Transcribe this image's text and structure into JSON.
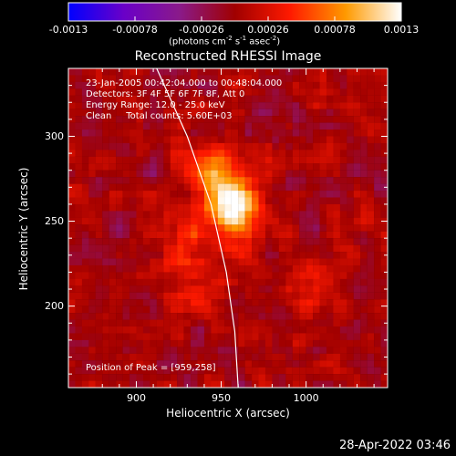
{
  "colorbar": {
    "ticks": [
      "-0.0013",
      "-0.00078",
      "-0.00026",
      "0.00026",
      "0.00078",
      "0.0013"
    ],
    "tick_values": [
      -0.0013,
      -0.00078,
      -0.00026,
      0.00026,
      0.00078,
      0.0013
    ],
    "range": [
      -0.0013,
      0.0013
    ],
    "unit_parts": [
      "(photons cm",
      "-2",
      " s",
      "-1",
      " asec",
      "-2",
      ")"
    ],
    "palette": [
      "#0000ff",
      "#6a00c8",
      "#8a1a8a",
      "#a00000",
      "#ff1a00",
      "#ff9a00",
      "#ffffff"
    ]
  },
  "chart_data": {
    "type": "heatmap",
    "title": "Reconstructed RHESSI Image",
    "xlabel": "Heliocentric X (arcsec)",
    "ylabel": "Heliocentric Y (arcsec)",
    "xlim": [
      860,
      1048
    ],
    "ylim": [
      152,
      340
    ],
    "xticks": [
      900,
      950,
      1000
    ],
    "yticks": [
      200,
      250,
      300
    ],
    "annotations": [
      "23-Jan-2005 00:42:04.000 to 00:48:04.000",
      "Detectors: 3F 4F 5F 6F 7F 8F, Att 0",
      "Energy Range: 12.0 - 25.0 keV",
      "Clean     Total counts: 5.60E+03"
    ],
    "peak_label": "Position of Peak = [959,258]",
    "peak": {
      "x": 959,
      "y": 258
    },
    "grid_step_arcsec": 4,
    "sources": [
      {
        "x": 957,
        "y": 260,
        "amplitude": 0.00128,
        "sigma_x": 12,
        "sigma_y": 16
      },
      {
        "x": 940,
        "y": 282,
        "amplitude": 0.00055,
        "sigma_x": 9,
        "sigma_y": 10
      },
      {
        "x": 926,
        "y": 232,
        "amplitude": 0.00045,
        "sigma_x": 10,
        "sigma_y": 18
      },
      {
        "x": 1000,
        "y": 208,
        "amplitude": 0.0004,
        "sigma_x": 8,
        "sigma_y": 10
      },
      {
        "x": 940,
        "y": 205,
        "amplitude": 0.00035,
        "sigma_x": 10,
        "sigma_y": 9
      }
    ],
    "background_amplitude": 0.0003,
    "limb": {
      "label": "solar limb",
      "points": [
        [
          912,
          340
        ],
        [
          930,
          300
        ],
        [
          944,
          260
        ],
        [
          953,
          220
        ],
        [
          958,
          185
        ],
        [
          960,
          152
        ]
      ]
    }
  },
  "footer": {
    "timestamp": "28-Apr-2022 03:46"
  }
}
